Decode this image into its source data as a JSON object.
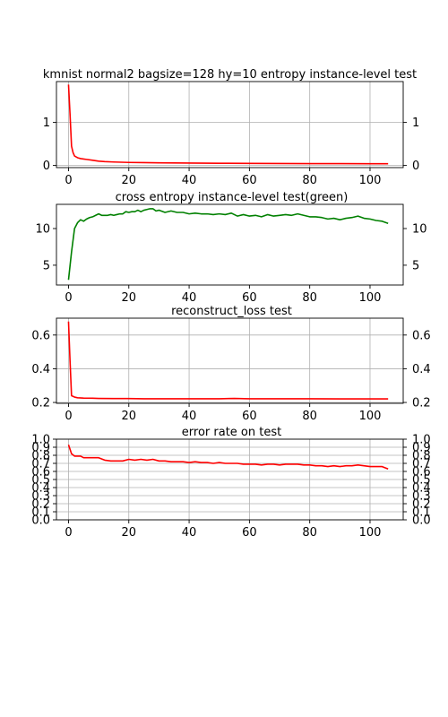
{
  "chart_data": [
    {
      "type": "line",
      "title": "kmnist normal2 bagsize=128 hy=10 entropy instance-level test",
      "xlim": [
        -4,
        111
      ],
      "ylim": [
        -0.05,
        1.95
      ],
      "xticks": [
        0,
        20,
        40,
        60,
        80,
        100
      ],
      "yticks": [
        0,
        1
      ],
      "ytick_labels": [
        "0",
        "1"
      ],
      "grid": true,
      "series": [
        {
          "color": "#ff0000",
          "x": [
            0,
            0.5,
            1,
            1.5,
            2,
            3,
            4,
            5,
            6,
            8,
            10,
            12,
            15,
            20,
            25,
            30,
            40,
            50,
            60,
            70,
            80,
            90,
            100,
            106
          ],
          "y": [
            1.88,
            1.2,
            0.45,
            0.3,
            0.22,
            0.18,
            0.16,
            0.15,
            0.14,
            0.12,
            0.1,
            0.09,
            0.08,
            0.07,
            0.065,
            0.06,
            0.055,
            0.05,
            0.048,
            0.045,
            0.043,
            0.042,
            0.04,
            0.04
          ]
        }
      ]
    },
    {
      "type": "line",
      "title": "cross entropy instance-level test(green)",
      "xlim": [
        -4,
        111
      ],
      "ylim": [
        2.3,
        13.3
      ],
      "xticks": [
        0,
        20,
        40,
        60,
        80,
        100
      ],
      "yticks": [
        5,
        10
      ],
      "ytick_labels": [
        "5",
        "10"
      ],
      "grid": false,
      "series": [
        {
          "color": "#008000",
          "x": [
            0,
            1,
            2,
            3,
            4,
            5,
            6,
            7,
            8,
            9,
            10,
            11,
            12,
            13,
            14,
            15,
            16,
            17,
            18,
            19,
            20,
            21,
            22,
            23,
            24,
            25,
            26,
            27,
            28,
            29,
            30,
            32,
            34,
            36,
            38,
            40,
            42,
            44,
            46,
            48,
            50,
            52,
            54,
            56,
            58,
            60,
            62,
            64,
            66,
            68,
            70,
            72,
            74,
            76,
            78,
            80,
            82,
            84,
            86,
            88,
            90,
            92,
            94,
            96,
            98,
            100,
            102,
            104,
            106
          ],
          "y": [
            3.0,
            6.8,
            10.0,
            10.8,
            11.2,
            11.0,
            11.3,
            11.5,
            11.6,
            11.8,
            12.0,
            11.8,
            11.8,
            11.8,
            11.9,
            11.8,
            11.9,
            12.0,
            12.0,
            12.3,
            12.2,
            12.3,
            12.3,
            12.5,
            12.3,
            12.5,
            12.6,
            12.7,
            12.7,
            12.4,
            12.5,
            12.2,
            12.4,
            12.2,
            12.2,
            12.0,
            12.1,
            12.0,
            12.0,
            11.9,
            12.0,
            11.9,
            12.1,
            11.7,
            11.9,
            11.7,
            11.8,
            11.6,
            11.9,
            11.7,
            11.8,
            11.9,
            11.8,
            12.0,
            11.8,
            11.6,
            11.6,
            11.5,
            11.3,
            11.4,
            11.2,
            11.4,
            11.5,
            11.7,
            11.4,
            11.3,
            11.1,
            11.0,
            10.7
          ]
        }
      ]
    },
    {
      "type": "line",
      "title": "reconstruct_loss test",
      "xlim": [
        -4,
        111
      ],
      "ylim": [
        0.195,
        0.7
      ],
      "xticks": [
        0,
        20,
        40,
        60,
        80,
        100
      ],
      "yticks": [
        0.2,
        0.4,
        0.6
      ],
      "ytick_labels": [
        "0.2",
        "0.4",
        "0.6"
      ],
      "grid": true,
      "series": [
        {
          "color": "#ff0000",
          "x": [
            0,
            0.5,
            1,
            2,
            3,
            5,
            8,
            10,
            15,
            20,
            25,
            30,
            40,
            50,
            55,
            60,
            70,
            80,
            90,
            100,
            106
          ],
          "y": [
            0.68,
            0.45,
            0.24,
            0.232,
            0.228,
            0.226,
            0.225,
            0.224,
            0.223,
            0.223,
            0.222,
            0.222,
            0.222,
            0.222,
            0.224,
            0.222,
            0.222,
            0.222,
            0.221,
            0.221,
            0.221
          ]
        }
      ]
    },
    {
      "type": "line",
      "title": "error rate on test",
      "xlim": [
        -4,
        111
      ],
      "ylim": [
        0.0,
        1.0
      ],
      "xticks": [
        0,
        20,
        40,
        60,
        80,
        100
      ],
      "yticks": [
        0.0,
        0.1,
        0.2,
        0.3,
        0.4,
        0.5,
        0.6,
        0.7,
        0.8,
        0.9,
        1.0
      ],
      "ytick_labels": [
        "0.0",
        "0.1",
        "0.2",
        "0.3",
        "0.4",
        "0.5",
        "0.6",
        "0.7",
        "0.8",
        "0.9",
        "1.0"
      ],
      "grid": true,
      "series": [
        {
          "color": "#ff0000",
          "x": [
            0,
            1,
            2,
            3,
            4,
            5,
            6,
            8,
            10,
            12,
            14,
            16,
            18,
            20,
            22,
            24,
            26,
            28,
            30,
            32,
            34,
            36,
            38,
            40,
            42,
            44,
            46,
            48,
            50,
            52,
            54,
            56,
            58,
            60,
            62,
            64,
            66,
            68,
            70,
            72,
            74,
            76,
            78,
            80,
            82,
            84,
            86,
            88,
            90,
            92,
            94,
            96,
            98,
            100,
            102,
            104,
            106
          ],
          "y": [
            0.93,
            0.82,
            0.79,
            0.79,
            0.79,
            0.77,
            0.77,
            0.77,
            0.77,
            0.74,
            0.73,
            0.73,
            0.73,
            0.75,
            0.74,
            0.75,
            0.74,
            0.75,
            0.73,
            0.73,
            0.72,
            0.72,
            0.72,
            0.71,
            0.72,
            0.71,
            0.71,
            0.7,
            0.71,
            0.7,
            0.7,
            0.7,
            0.69,
            0.69,
            0.69,
            0.68,
            0.69,
            0.69,
            0.68,
            0.69,
            0.69,
            0.69,
            0.68,
            0.68,
            0.67,
            0.67,
            0.66,
            0.67,
            0.66,
            0.67,
            0.67,
            0.68,
            0.67,
            0.66,
            0.66,
            0.66,
            0.63
          ]
        }
      ]
    }
  ]
}
